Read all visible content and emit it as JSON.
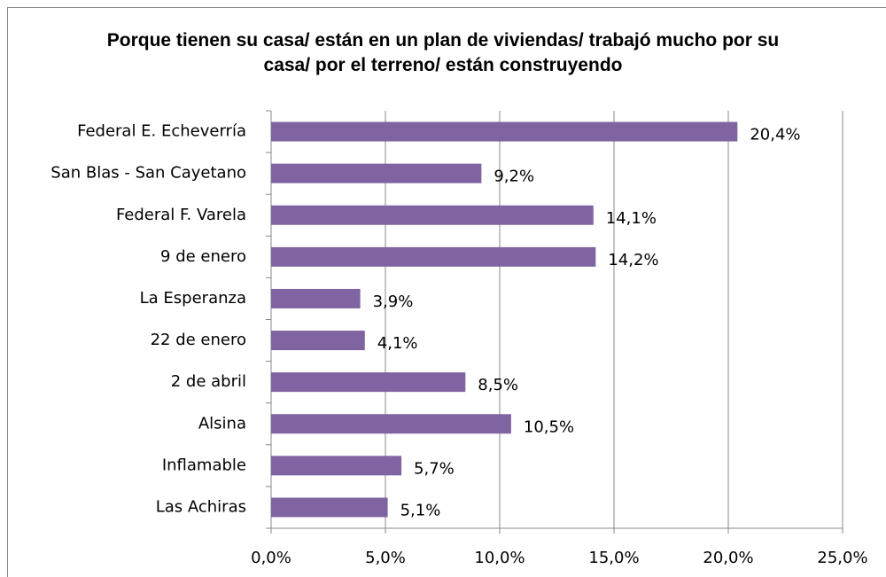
{
  "chart_data": {
    "type": "bar",
    "orientation": "horizontal",
    "title": "Porque tienen su casa/ están en un plan de viviendas/ trabajó mucho por su casa/ por el terreno/ están construyendo",
    "categories": [
      "Federal E. Echeverría",
      "San Blas - San Cayetano",
      "Federal F. Varela",
      "9 de enero",
      "La Esperanza",
      "22 de enero",
      "2 de abril",
      "Alsina",
      "Inflamable",
      "Las Achiras"
    ],
    "values": [
      20.4,
      9.2,
      14.1,
      14.2,
      3.9,
      4.1,
      8.5,
      10.5,
      5.7,
      5.1
    ],
    "value_labels": [
      "20,4%",
      "9,2%",
      "14,1%",
      "14,2%",
      "3,9%",
      "4,1%",
      "8,5%",
      "10,5%",
      "5,7%",
      "5,1%"
    ],
    "color": "#8064a2",
    "xlim": [
      0,
      25
    ],
    "xticks": [
      {
        "value": 0,
        "label": "0,0%"
      },
      {
        "value": 5,
        "label": "5,0%"
      },
      {
        "value": 10,
        "label": "10,0%"
      },
      {
        "value": 15,
        "label": "15,0%"
      },
      {
        "value": 20,
        "label": "20,0%"
      },
      {
        "value": 25,
        "label": "25,0%"
      }
    ],
    "grid": true
  }
}
